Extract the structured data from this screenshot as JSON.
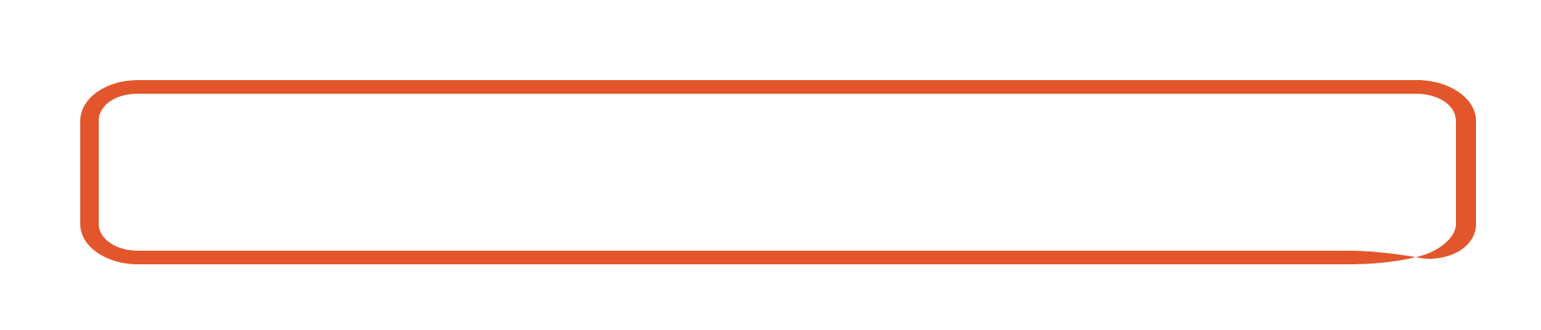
{
  "colors": {
    "background": "#ffffff",
    "stroke": "#E3562B"
  },
  "shapes": [
    {
      "name": "rounded-rectangle-outline",
      "style": "hand-drawn",
      "fill": "none"
    }
  ]
}
